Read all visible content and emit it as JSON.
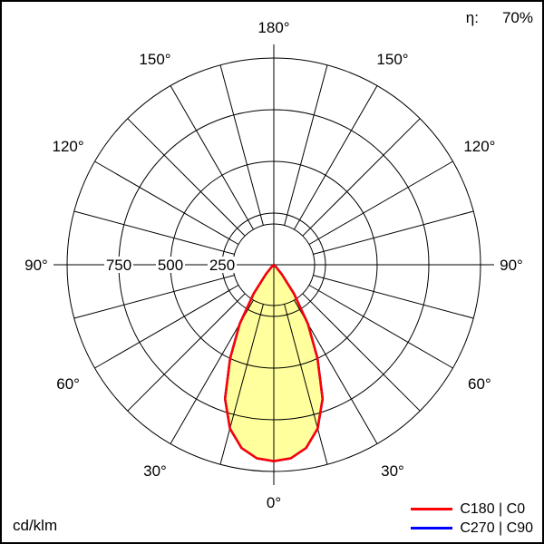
{
  "header": {
    "efficiency_label": "η:",
    "efficiency_value": "70%"
  },
  "chart_data": {
    "type": "polar",
    "description": "Polar luminous intensity distribution curve of a luminaire",
    "unit": "cd/klm",
    "efficiency": "70%",
    "ring_max": 1000,
    "ring_ticks": [
      {
        "value": 250,
        "label": "250"
      },
      {
        "value": 500,
        "label": "500"
      },
      {
        "value": 750,
        "label": "750"
      }
    ],
    "angle_ticks": [
      {
        "deg": 0,
        "label": "0°"
      },
      {
        "deg": 30,
        "label": "30°"
      },
      {
        "deg": 60,
        "label": "60°"
      },
      {
        "deg": 90,
        "label": "90°"
      },
      {
        "deg": 120,
        "label": "120°"
      },
      {
        "deg": 150,
        "label": "150°"
      },
      {
        "deg": 180,
        "label": "180°"
      }
    ],
    "grid_step_deg": 15,
    "fill_color": "#ffff9e",
    "series": [
      {
        "name": "C180 | C0",
        "color": "#ff0000",
        "gamma_deg": [
          0,
          5,
          10,
          15,
          20,
          25,
          30,
          35,
          40,
          45,
          50
        ],
        "cd_per_klm": [
          950,
          940,
          900,
          820,
          690,
          500,
          330,
          170,
          60,
          15,
          0
        ]
      },
      {
        "name": "C270 | C90",
        "color": "#0000ff",
        "gamma_deg": [
          0,
          5,
          10,
          15,
          20,
          25,
          30,
          35,
          40,
          45,
          50
        ],
        "cd_per_klm": [
          950,
          940,
          900,
          820,
          690,
          500,
          330,
          170,
          60,
          15,
          0
        ]
      }
    ]
  }
}
